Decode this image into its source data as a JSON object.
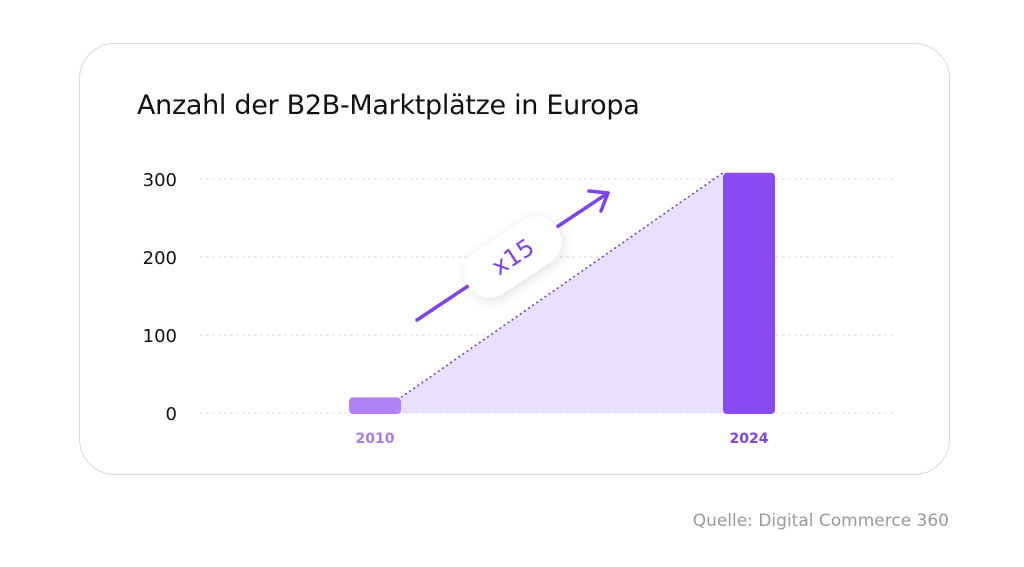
{
  "chart_data": {
    "type": "bar",
    "title": "Anzahl der B2B-Marktplätze in Europa",
    "categories": [
      "2010",
      "2024"
    ],
    "values": [
      20,
      308
    ],
    "ylim": [
      0,
      300
    ],
    "yticks": [
      "0",
      "100",
      "200",
      "300"
    ],
    "grid": true,
    "annotation": "x15",
    "colors": {
      "bar_2010": "#b081f7",
      "bar_2024": "#8a4af3",
      "fill": "#e5dbfd",
      "arrow": "#7d43ef",
      "label_2010": "#a77cf3",
      "label_2024": "#7d43ef"
    }
  },
  "source": "Quelle: Digital Commerce 360"
}
